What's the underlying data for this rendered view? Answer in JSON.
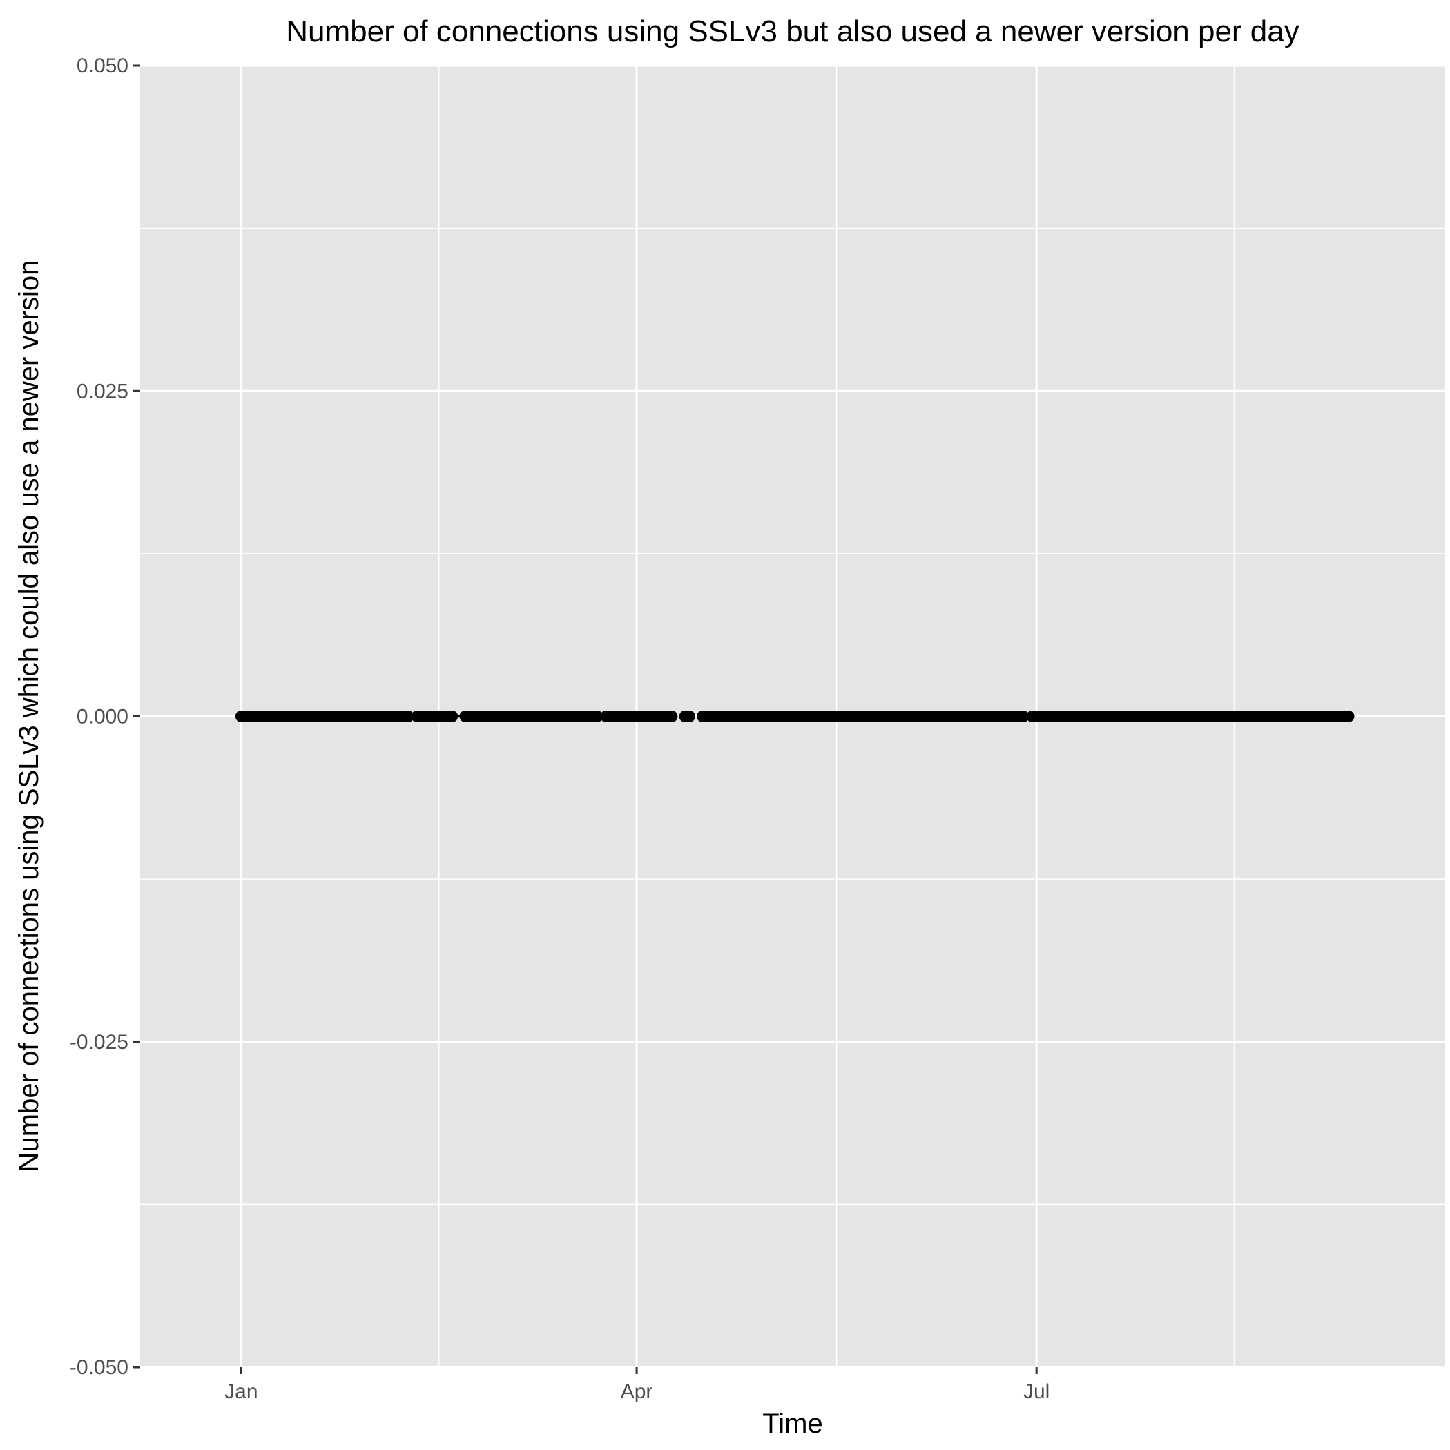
{
  "chart_data": {
    "type": "line",
    "title": "Number of connections using SSLv3 but also used a newer version per day",
    "xlabel": "Time",
    "ylabel": "Number of connections using SSLv3 which could also use a newer version",
    "x_axis": {
      "ticks": [
        {
          "label": "Jan",
          "date": "2017-01-01"
        },
        {
          "label": "Apr",
          "date": "2017-04-01"
        },
        {
          "label": "Jul",
          "date": "2017-07-01"
        }
      ],
      "range": [
        "2016-12-09",
        "2017-10-02"
      ]
    },
    "y_axis": {
      "ticks": [
        {
          "label": "0.050",
          "value": 0.05
        },
        {
          "label": "0.025",
          "value": 0.025
        },
        {
          "label": "0.000",
          "value": 0
        },
        {
          "label": "-0.025",
          "value": -0.025
        },
        {
          "label": "-0.050",
          "value": -0.05
        }
      ],
      "ylim": [
        -0.05,
        0.05
      ]
    },
    "grid": true,
    "panel_background": "#e5e5e5",
    "grid_color": "#ffffff",
    "series": [
      {
        "color": "#000000",
        "markers": true,
        "segments": [
          {
            "start": "2017-01-01",
            "end": "2017-02-08"
          },
          {
            "start": "2017-02-10",
            "end": "2017-02-18"
          },
          {
            "start": "2017-02-21",
            "end": "2017-03-23"
          },
          {
            "start": "2017-03-25",
            "end": "2017-04-09"
          },
          {
            "start": "2017-04-12",
            "end": "2017-04-13"
          },
          {
            "start": "2017-04-16",
            "end": "2017-06-28"
          },
          {
            "start": "2017-06-30",
            "end": "2017-09-10"
          }
        ],
        "gap_bridges": [
          {
            "start": "2017-02-18",
            "end": "2017-02-21"
          }
        ],
        "value": 0
      }
    ]
  }
}
